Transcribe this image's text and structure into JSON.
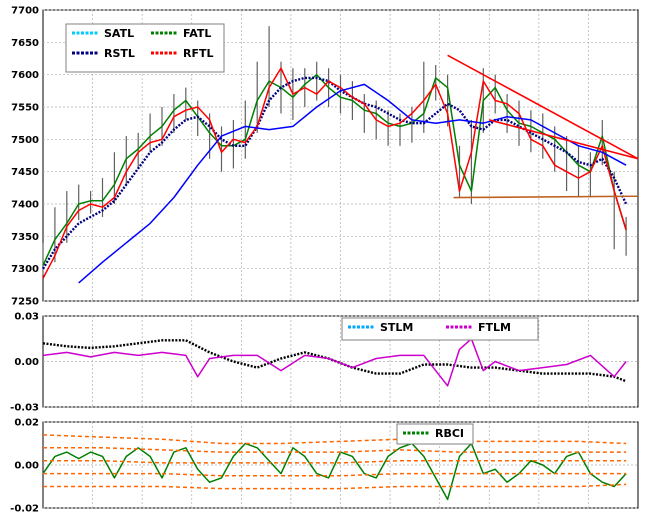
{
  "chart_data": [
    {
      "type": "line",
      "panel": "price",
      "ylim": [
        7250,
        7700
      ],
      "yticks": [
        7250,
        7300,
        7350,
        7400,
        7450,
        7500,
        7550,
        7600,
        7650,
        7700
      ],
      "ytick_labels": [
        "7250",
        "7300",
        "7350",
        "7400",
        "7450",
        "7500",
        "7550",
        "7600",
        "7650",
        "7700"
      ],
      "xlim": [
        0,
        100
      ],
      "grid": true,
      "legend_position": "top-left",
      "legend": [
        {
          "label": "SATL",
          "color": "#00ccff"
        },
        {
          "label": "FATL",
          "color": "#008000"
        },
        {
          "label": "RSTL",
          "color": "#000080"
        },
        {
          "label": "RFTL",
          "color": "#ff0000"
        }
      ],
      "series": [
        {
          "name": "FATL",
          "color": "#008000",
          "x": [
            0,
            2,
            4,
            6,
            8,
            10,
            12,
            14,
            16,
            18,
            20,
            22,
            24,
            26,
            28,
            30,
            32,
            34,
            36,
            38,
            40,
            42,
            44,
            46,
            48,
            50,
            52,
            54,
            56,
            58,
            60,
            62,
            64,
            66,
            68,
            70,
            72,
            74,
            76,
            78,
            80,
            82,
            84,
            86,
            88,
            90,
            92,
            94,
            96,
            98
          ],
          "y": [
            7305,
            7345,
            7370,
            7400,
            7405,
            7405,
            7430,
            7470,
            7485,
            7505,
            7520,
            7545,
            7560,
            7535,
            7510,
            7490,
            7490,
            7500,
            7560,
            7590,
            7580,
            7565,
            7585,
            7600,
            7580,
            7565,
            7560,
            7545,
            7540,
            7525,
            7520,
            7525,
            7540,
            7595,
            7580,
            7460,
            7420,
            7560,
            7580,
            7545,
            7525,
            7520,
            7510,
            7500,
            7480,
            7460,
            7450,
            7505,
            7420,
            7360
          ]
        },
        {
          "name": "RSTL",
          "color": "#000080",
          "x": [
            0,
            2,
            4,
            6,
            8,
            10,
            12,
            14,
            16,
            18,
            20,
            22,
            24,
            26,
            28,
            30,
            32,
            34,
            36,
            38,
            40,
            42,
            44,
            46,
            48,
            50,
            52,
            54,
            56,
            58,
            60,
            62,
            64,
            66,
            68,
            70,
            72,
            74,
            76,
            78,
            80,
            82,
            84,
            86,
            88,
            90,
            92,
            94,
            96,
            98
          ],
          "y": [
            7300,
            7330,
            7350,
            7370,
            7380,
            7390,
            7405,
            7430,
            7455,
            7480,
            7495,
            7515,
            7530,
            7535,
            7520,
            7500,
            7490,
            7490,
            7520,
            7560,
            7580,
            7590,
            7595,
            7595,
            7590,
            7575,
            7565,
            7555,
            7550,
            7540,
            7530,
            7525,
            7525,
            7540,
            7555,
            7545,
            7520,
            7515,
            7530,
            7530,
            7520,
            7510,
            7500,
            7490,
            7480,
            7465,
            7460,
            7470,
            7440,
            7400
          ]
        },
        {
          "name": "RFTL",
          "color": "#ff0000",
          "x": [
            0,
            2,
            4,
            6,
            8,
            10,
            12,
            14,
            16,
            18,
            20,
            22,
            24,
            26,
            28,
            30,
            32,
            34,
            36,
            38,
            40,
            42,
            44,
            46,
            48,
            50,
            52,
            54,
            56,
            58,
            60,
            62,
            64,
            66,
            68,
            70,
            72,
            74,
            76,
            78,
            80,
            82,
            84,
            86,
            88,
            90,
            92,
            94,
            96,
            98
          ],
          "y": [
            7285,
            7320,
            7365,
            7390,
            7400,
            7395,
            7410,
            7450,
            7480,
            7495,
            7500,
            7535,
            7545,
            7550,
            7530,
            7480,
            7500,
            7495,
            7520,
            7580,
            7610,
            7570,
            7580,
            7570,
            7590,
            7580,
            7565,
            7555,
            7530,
            7520,
            7525,
            7540,
            7560,
            7585,
            7540,
            7420,
            7480,
            7590,
            7560,
            7555,
            7540,
            7500,
            7490,
            7460,
            7450,
            7440,
            7450,
            7490,
            7420,
            7360
          ]
        },
        {
          "name": "SATL",
          "color": "#0000ff",
          "x": [
            6,
            10,
            14,
            18,
            22,
            26,
            30,
            34,
            38,
            42,
            46,
            50,
            54,
            58,
            62,
            66,
            70,
            74,
            78,
            82,
            86,
            90,
            94,
            98
          ],
          "y": [
            7278,
            7310,
            7340,
            7370,
            7410,
            7460,
            7505,
            7520,
            7515,
            7520,
            7550,
            7575,
            7585,
            7560,
            7530,
            7525,
            7530,
            7525,
            7535,
            7530,
            7510,
            7490,
            7480,
            7460
          ]
        }
      ],
      "bars": {
        "x": [
          0,
          2,
          4,
          6,
          8,
          10,
          12,
          14,
          16,
          18,
          20,
          22,
          24,
          26,
          28,
          30,
          32,
          34,
          36,
          38,
          40,
          42,
          44,
          46,
          48,
          50,
          52,
          54,
          56,
          58,
          60,
          62,
          64,
          66,
          68,
          70,
          72,
          74,
          76,
          78,
          80,
          82,
          84,
          86,
          88,
          90,
          92,
          94,
          96,
          98
        ],
        "high": [
          7340,
          7395,
          7420,
          7430,
          7420,
          7440,
          7480,
          7505,
          7510,
          7540,
          7550,
          7570,
          7580,
          7560,
          7540,
          7520,
          7530,
          7560,
          7620,
          7675,
          7620,
          7610,
          7610,
          7620,
          7610,
          7600,
          7590,
          7570,
          7560,
          7545,
          7540,
          7550,
          7620,
          7615,
          7600,
          7490,
          7530,
          7610,
          7600,
          7570,
          7560,
          7545,
          7540,
          7520,
          7505,
          7490,
          7480,
          7530,
          7450,
          7380
        ],
        "low": [
          7290,
          7310,
          7340,
          7375,
          7385,
          7380,
          7400,
          7430,
          7455,
          7480,
          7490,
          7510,
          7530,
          7505,
          7470,
          7450,
          7455,
          7470,
          7510,
          7550,
          7540,
          7530,
          7550,
          7560,
          7550,
          7540,
          7530,
          7510,
          7500,
          7490,
          7490,
          7495,
          7510,
          7560,
          7520,
          7410,
          7400,
          7510,
          7540,
          7510,
          7490,
          7480,
          7470,
          7450,
          7420,
          7410,
          7410,
          7460,
          7330,
          7320
        ]
      },
      "annotations": [
        {
          "type": "trendline",
          "color": "#ff0000",
          "from": [
            68,
            7630
          ],
          "to": [
            100,
            7470
          ]
        },
        {
          "type": "trendline",
          "color": "#ff0000",
          "from": [
            75,
            7530
          ],
          "to": [
            100,
            7470
          ]
        },
        {
          "type": "trendline",
          "color": "#c06020",
          "from": [
            69,
            7410
          ],
          "to": [
            100,
            7412
          ]
        }
      ]
    },
    {
      "type": "line",
      "panel": "oscillator",
      "ylim": [
        -0.03,
        0.03
      ],
      "yticks": [
        -0.03,
        0.0,
        0.03
      ],
      "ytick_labels": [
        "-0.03",
        "0.00",
        "0.03"
      ],
      "xlim": [
        0,
        100
      ],
      "grid": true,
      "legend_position": "top-right",
      "legend": [
        {
          "label": "STLM",
          "color": "#00aaff"
        },
        {
          "label": "FTLM",
          "color": "#cc00cc"
        }
      ],
      "series": [
        {
          "name": "STLM",
          "color": "#000000",
          "x": [
            0,
            4,
            8,
            12,
            16,
            20,
            24,
            28,
            32,
            36,
            40,
            44,
            48,
            52,
            56,
            60,
            64,
            68,
            72,
            76,
            80,
            84,
            88,
            92,
            96,
            98
          ],
          "y": [
            0.012,
            0.01,
            0.009,
            0.01,
            0.012,
            0.014,
            0.014,
            0.006,
            0.0,
            -0.004,
            0.002,
            0.006,
            0.002,
            -0.004,
            -0.008,
            -0.008,
            -0.002,
            -0.002,
            -0.004,
            -0.004,
            -0.006,
            -0.008,
            -0.008,
            -0.008,
            -0.01,
            -0.013
          ]
        },
        {
          "name": "FTLM",
          "color": "#cc00cc",
          "x": [
            0,
            4,
            8,
            12,
            16,
            20,
            24,
            26,
            28,
            32,
            36,
            40,
            44,
            48,
            52,
            56,
            60,
            64,
            68,
            70,
            72,
            74,
            76,
            80,
            84,
            88,
            92,
            96,
            98
          ],
          "y": [
            0.004,
            0.006,
            0.003,
            0.006,
            0.004,
            0.006,
            0.004,
            -0.01,
            0.002,
            0.004,
            0.004,
            -0.006,
            0.004,
            0.002,
            -0.004,
            0.002,
            0.004,
            0.004,
            -0.016,
            0.008,
            0.015,
            -0.006,
            0.0,
            -0.006,
            -0.004,
            -0.002,
            0.004,
            -0.01,
            0.0
          ]
        }
      ]
    },
    {
      "type": "line",
      "panel": "rbci",
      "ylim": [
        -0.02,
        0.02
      ],
      "yticks": [
        -0.02,
        0.0,
        0.02
      ],
      "ytick_labels": [
        "-0.02",
        "0.00",
        "0.02"
      ],
      "xlim": [
        0,
        100
      ],
      "grid": true,
      "legend_position": "top-right",
      "legend": [
        {
          "label": "RBCI",
          "color": "#008000"
        }
      ],
      "series": [
        {
          "name": "RBCI",
          "color": "#008000",
          "x": [
            0,
            2,
            4,
            6,
            8,
            10,
            12,
            14,
            16,
            18,
            20,
            22,
            24,
            26,
            28,
            30,
            32,
            34,
            36,
            38,
            40,
            42,
            44,
            46,
            48,
            50,
            52,
            54,
            56,
            58,
            60,
            62,
            64,
            66,
            68,
            70,
            72,
            74,
            76,
            78,
            80,
            82,
            84,
            86,
            88,
            90,
            92,
            94,
            96,
            98
          ],
          "y": [
            -0.004,
            0.004,
            0.006,
            0.003,
            0.006,
            0.004,
            -0.006,
            0.004,
            0.008,
            0.004,
            -0.006,
            0.006,
            0.008,
            -0.002,
            -0.008,
            -0.006,
            0.004,
            0.01,
            0.008,
            0.002,
            -0.004,
            0.008,
            0.004,
            -0.004,
            -0.006,
            0.006,
            0.004,
            -0.004,
            -0.006,
            0.004,
            0.008,
            0.01,
            0.004,
            -0.006,
            -0.016,
            0.004,
            0.01,
            -0.004,
            -0.002,
            -0.008,
            -0.004,
            0.002,
            0.0,
            -0.004,
            0.004,
            0.006,
            -0.004,
            -0.008,
            -0.01,
            -0.004
          ]
        },
        {
          "name": "",
          "color": "#ff6600",
          "dashed": true,
          "x": [
            0,
            10,
            20,
            30,
            40,
            50,
            60,
            70,
            80,
            90,
            98
          ],
          "y": [
            0.014,
            0.013,
            0.012,
            0.01,
            0.01,
            0.011,
            0.012,
            0.011,
            0.011,
            0.011,
            0.01
          ]
        },
        {
          "name": "",
          "color": "#ff6600",
          "dashed": true,
          "x": [
            0,
            10,
            20,
            30,
            40,
            50,
            60,
            70,
            80,
            90,
            98
          ],
          "y": [
            0.008,
            0.008,
            0.007,
            0.006,
            0.006,
            0.006,
            0.007,
            0.006,
            0.006,
            0.006,
            0.006
          ]
        },
        {
          "name": "",
          "color": "#ff6600",
          "dashed": true,
          "x": [
            0,
            10,
            20,
            30,
            40,
            50,
            60,
            70,
            80,
            90,
            98
          ],
          "y": [
            0.002,
            0.002,
            0.001,
            0.001,
            0.001,
            0.001,
            0.002,
            0.002,
            0.002,
            0.002,
            0.002
          ]
        },
        {
          "name": "",
          "color": "#ff6600",
          "dashed": true,
          "x": [
            0,
            10,
            20,
            30,
            40,
            50,
            60,
            70,
            80,
            90,
            98
          ],
          "y": [
            -0.004,
            -0.004,
            -0.004,
            -0.005,
            -0.005,
            -0.005,
            -0.004,
            -0.004,
            -0.004,
            -0.004,
            -0.004
          ]
        },
        {
          "name": "",
          "color": "#ff6600",
          "dashed": true,
          "x": [
            0,
            10,
            20,
            30,
            40,
            50,
            60,
            70,
            80,
            90,
            98
          ],
          "y": [
            -0.01,
            -0.01,
            -0.01,
            -0.011,
            -0.011,
            -0.011,
            -0.01,
            -0.01,
            -0.01,
            -0.01,
            -0.009
          ]
        }
      ]
    }
  ]
}
